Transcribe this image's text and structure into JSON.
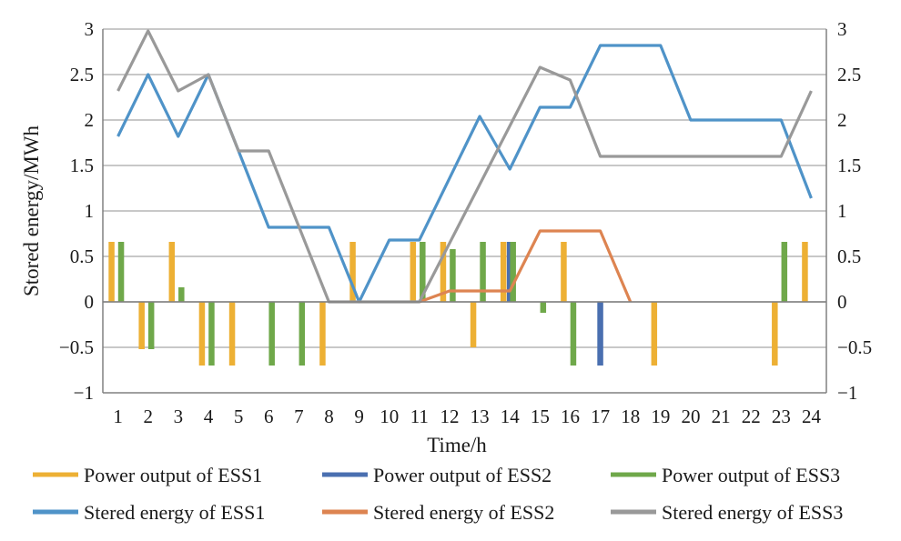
{
  "chart_data": {
    "type": "bar",
    "title": "",
    "xlabel": "Time/h",
    "ylabel": "Stored energy/MWh",
    "ylim": [
      -1,
      3
    ],
    "y_ticks": [
      "−1",
      "−0.5",
      "0",
      "0.5",
      "1",
      "1.5",
      "2",
      "2.5",
      "3"
    ],
    "y2lim": [
      -1,
      3
    ],
    "y2_ticks": [
      "−1",
      "−0.5",
      "0",
      "0.5",
      "1",
      "1.5",
      "2",
      "2.5",
      "3"
    ],
    "categories": [
      "1",
      "2",
      "3",
      "4",
      "5",
      "6",
      "7",
      "8",
      "9",
      "10",
      "11",
      "12",
      "13",
      "14",
      "15",
      "16",
      "17",
      "18",
      "19",
      "20",
      "21",
      "22",
      "23",
      "24"
    ],
    "grid": true,
    "legend_position": "bottom",
    "bar_series": [
      {
        "name": "Power output of ESS1",
        "color": "#EDB034",
        "values": [
          0.66,
          -0.52,
          0.66,
          -0.7,
          -0.7,
          0,
          0,
          -0.7,
          0.66,
          0,
          0.66,
          0.66,
          -0.5,
          0.66,
          0,
          0.66,
          0,
          0,
          -0.7,
          0,
          0,
          0,
          -0.7,
          0.66
        ]
      },
      {
        "name": "Power output of ESS2",
        "color": "#4A6FB0",
        "values": [
          0,
          0,
          0,
          0,
          0,
          0,
          0,
          0,
          0,
          0,
          0,
          0,
          0,
          0.66,
          0,
          0,
          -0.7,
          0,
          0,
          0,
          0,
          0,
          0,
          0
        ]
      },
      {
        "name": "Power output of ESS3",
        "color": "#6FA84A",
        "values": [
          0.66,
          -0.52,
          0.16,
          -0.7,
          0,
          -0.7,
          -0.7,
          0,
          0,
          0,
          0.66,
          0.58,
          0.66,
          0.66,
          -0.12,
          -0.7,
          0,
          0,
          0,
          0,
          0,
          0,
          0.66,
          0
        ]
      }
    ],
    "line_series": [
      {
        "name": "Stered energy of ESS1",
        "color": "#4F93C8",
        "x": [
          1,
          2,
          3,
          4,
          5,
          6,
          7,
          8,
          9,
          10,
          11,
          13,
          14,
          15,
          16,
          17,
          19,
          20,
          23,
          24
        ],
        "y": [
          1.82,
          2.5,
          1.82,
          2.5,
          1.66,
          0.82,
          0.82,
          0.82,
          0,
          0.68,
          0.68,
          2.04,
          1.46,
          2.14,
          2.14,
          2.82,
          2.82,
          2.0,
          2.0,
          1.14
        ]
      },
      {
        "name": "Stered energy of ESS2",
        "color": "#DD8451",
        "x": [
          11,
          12,
          14,
          15,
          17,
          18
        ],
        "y": [
          0,
          0.12,
          0.12,
          0.78,
          0.78,
          0
        ]
      },
      {
        "name": "Stered energy of ESS3",
        "color": "#999999",
        "x": [
          1,
          2,
          3,
          4,
          5,
          6,
          8,
          11,
          15,
          16,
          17,
          23,
          24
        ],
        "y": [
          2.32,
          2.98,
          2.32,
          2.5,
          1.66,
          1.66,
          0,
          0,
          2.58,
          2.44,
          1.6,
          1.6,
          2.32
        ]
      }
    ]
  }
}
